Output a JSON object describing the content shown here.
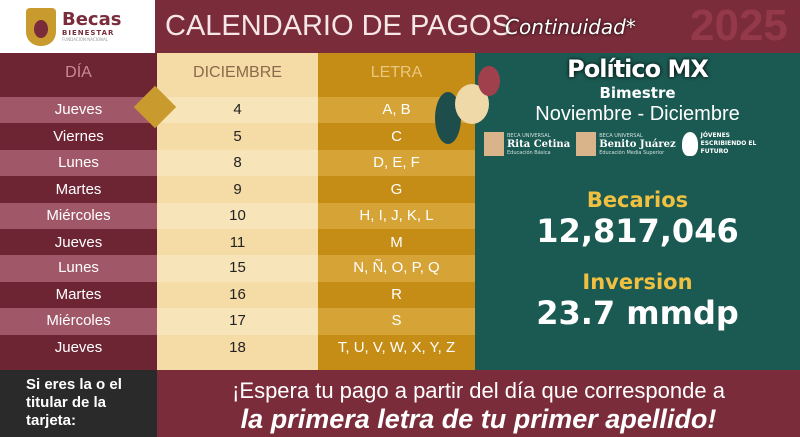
{
  "logo": {
    "name": "Becas",
    "line2": "BIENESTAR",
    "line3": "FUNDACIÓN NACIONAL"
  },
  "header": {
    "title": "CALENDARIO DE PAGOS",
    "subtitle": "Continuidad*",
    "year": "2025",
    "watermark": "Político MX"
  },
  "table": {
    "headers": [
      "DÍA",
      "DICIEMBRE",
      "LETRA"
    ],
    "rows": [
      {
        "day": "Jueves",
        "date": "4",
        "letters": "A, B"
      },
      {
        "day": "Viernes",
        "date": "5",
        "letters": "C"
      },
      {
        "day": "Lunes",
        "date": "8",
        "letters": "D, E, F"
      },
      {
        "day": "Martes",
        "date": "9",
        "letters": "G"
      },
      {
        "day": "Miércoles",
        "date": "10",
        "letters": "H, I, J, K, L"
      },
      {
        "day": "Jueves",
        "date": "11",
        "letters": "M"
      },
      {
        "day": "Lunes",
        "date": "15",
        "letters": "N, Ñ, O, P, Q"
      },
      {
        "day": "Martes",
        "date": "16",
        "letters": "R"
      },
      {
        "day": "Miércoles",
        "date": "17",
        "letters": "S"
      },
      {
        "day": "Jueves",
        "date": "18",
        "letters": "T, U, V, W, X, Y, Z"
      }
    ]
  },
  "panel": {
    "bimester_label": "Bimestre",
    "period": "Noviembre - Diciembre",
    "programs": [
      {
        "small": "BECA UNIVERSAL",
        "name": "Rita Cetina",
        "sub": "Educación Básica"
      },
      {
        "small": "BECA UNIVERSAL",
        "name": "Benito Juárez",
        "sub": "Educación Media Superior"
      },
      {
        "small": "",
        "name": "JÓVENES ESCRIBIENDO EL FUTURO",
        "sub": ""
      }
    ],
    "becarios_label": "Becarios",
    "becarios_value": "12,817,046",
    "inversion_label": "Inversion",
    "inversion_value": "23.7 mmdp"
  },
  "footer": {
    "left": "Si eres la o el titular de la tarjeta:",
    "line1": "¡Espera tu pago a partir del día que corresponde a",
    "line2": "la primera letra de tu primer apellido!"
  },
  "colors": {
    "maroon": "#7b2c3a",
    "gold": "#c68d16",
    "cream": "#f5dba6",
    "green": "#1b5a52",
    "accent": "#f0c040"
  }
}
